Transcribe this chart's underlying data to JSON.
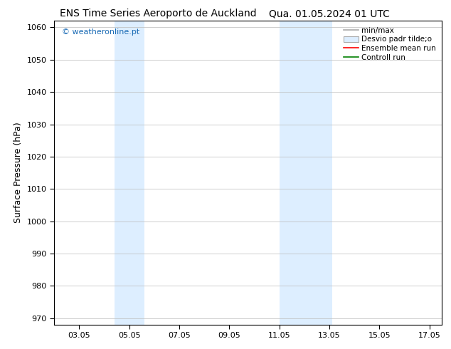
{
  "title_left": "ENS Time Series Aeroporto de Auckland",
  "title_right": "Qua. 01.05.2024 01 UTC",
  "ylabel": "Surface Pressure (hPa)",
  "ylim": [
    968,
    1062
  ],
  "yticks": [
    970,
    980,
    990,
    1000,
    1010,
    1020,
    1030,
    1040,
    1050,
    1060
  ],
  "xtick_labels": [
    "03.05",
    "05.05",
    "07.05",
    "09.05",
    "11.05",
    "13.05",
    "15.05",
    "17.05"
  ],
  "xtick_positions": [
    3,
    5,
    7,
    9,
    11,
    13,
    15,
    17
  ],
  "xlim": [
    2.0,
    17.5
  ],
  "shaded_bands": [
    {
      "x_start": 4.4,
      "x_end": 5.6,
      "color": "#ddeeff"
    },
    {
      "x_start": 11.0,
      "x_end": 13.1,
      "color": "#ddeeff"
    }
  ],
  "watermark_text": "© weatheronline.pt",
  "watermark_color": "#1a6bb5",
  "bg_color": "#ffffff",
  "plot_bg_color": "#ffffff",
  "legend_items": [
    {
      "label": "min/max",
      "color": "#aaaaaa",
      "lw": 1.2,
      "ls": "-",
      "type": "line"
    },
    {
      "label": "Desvio padr tilde;o",
      "facecolor": "#ddeeff",
      "edgecolor": "#aaaaaa",
      "type": "patch"
    },
    {
      "label": "Ensemble mean run",
      "color": "#ff0000",
      "lw": 1.2,
      "ls": "-",
      "type": "line"
    },
    {
      "label": "Controll run",
      "color": "#008000",
      "lw": 1.2,
      "ls": "-",
      "type": "line"
    }
  ],
  "grid_color": "#bbbbbb",
  "tick_label_fontsize": 8,
  "axis_label_fontsize": 9,
  "title_fontsize": 10,
  "legend_fontsize": 7.5
}
